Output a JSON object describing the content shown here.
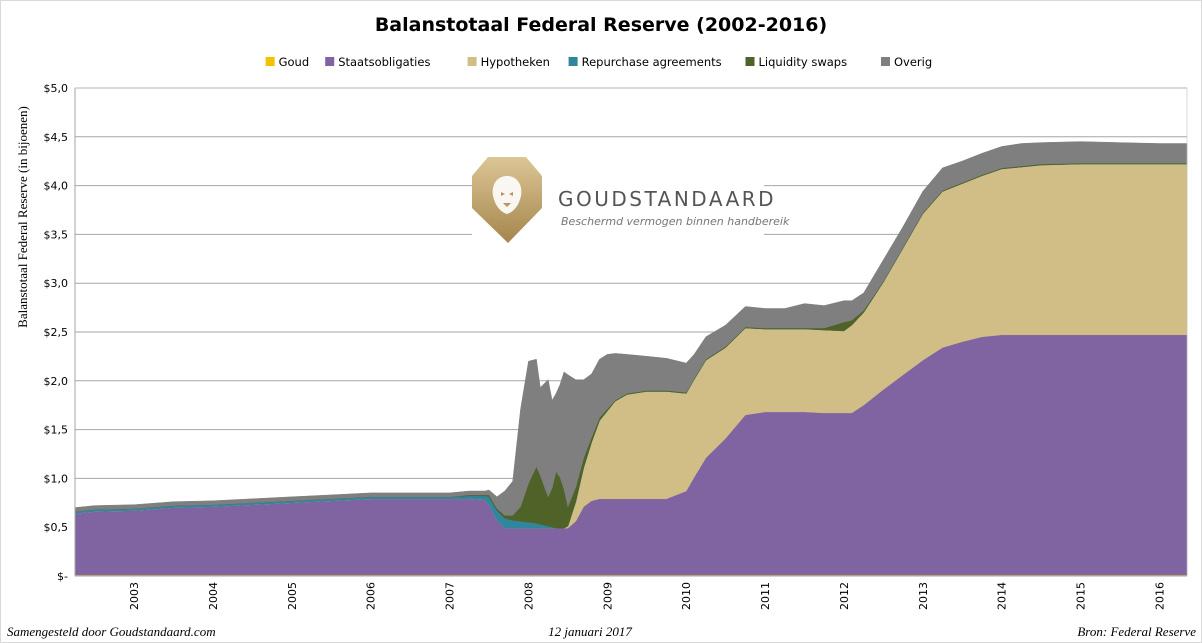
{
  "chart_data": {
    "type": "area",
    "stacked": true,
    "title": "Balanstotaal Federal Reserve (2002-2016)",
    "ylabel": "Balanstotaal Federal Reserve (in bijoenen)",
    "xlabel": "",
    "ylim": [
      0,
      5.0
    ],
    "yticks": [
      "$-",
      "$0,5",
      "$1,0",
      "$1,5",
      "$2,0",
      "$2,5",
      "$3,0",
      "$3,5",
      "$4,0",
      "$4,5",
      "$5,0"
    ],
    "x_tick_labels": [
      "2003",
      "2004",
      "2005",
      "2006",
      "2007",
      "2008",
      "2009",
      "2010",
      "2011",
      "2012",
      "2013",
      "2014",
      "2015",
      "2016"
    ],
    "xlim": [
      2002.75,
      2016.85
    ],
    "grid": true,
    "legend_position": "top",
    "x": [
      2002.75,
      2003.0,
      2003.5,
      2004.0,
      2004.5,
      2005.0,
      2005.5,
      2006.0,
      2006.5,
      2007.0,
      2007.5,
      2007.75,
      2007.95,
      2008.0,
      2008.1,
      2008.2,
      2008.3,
      2008.4,
      2008.5,
      2008.6,
      2008.65,
      2008.7,
      2008.75,
      2008.8,
      2008.85,
      2008.9,
      2008.95,
      2009.0,
      2009.1,
      2009.2,
      2009.3,
      2009.4,
      2009.5,
      2009.6,
      2009.75,
      2010.0,
      2010.25,
      2010.5,
      2010.6,
      2010.75,
      2011.0,
      2011.25,
      2011.5,
      2011.75,
      2012.0,
      2012.25,
      2012.5,
      2012.6,
      2012.75,
      2013.0,
      2013.25,
      2013.5,
      2013.75,
      2014.0,
      2014.25,
      2014.5,
      2014.75,
      2015.0,
      2015.5,
      2016.0,
      2016.5,
      2016.85
    ],
    "series": [
      {
        "name": "Goud",
        "color": "#f2c200",
        "values": [
          0.011,
          0.011,
          0.011,
          0.011,
          0.011,
          0.011,
          0.011,
          0.011,
          0.011,
          0.011,
          0.011,
          0.011,
          0.011,
          0.011,
          0.011,
          0.011,
          0.011,
          0.011,
          0.011,
          0.011,
          0.011,
          0.011,
          0.011,
          0.011,
          0.011,
          0.011,
          0.011,
          0.011,
          0.011,
          0.011,
          0.011,
          0.011,
          0.011,
          0.011,
          0.011,
          0.011,
          0.011,
          0.011,
          0.011,
          0.011,
          0.011,
          0.011,
          0.011,
          0.011,
          0.011,
          0.011,
          0.011,
          0.011,
          0.011,
          0.011,
          0.011,
          0.011,
          0.011,
          0.011,
          0.011,
          0.011,
          0.011,
          0.011,
          0.011,
          0.011,
          0.011,
          0.011
        ]
      },
      {
        "name": "Staatsobligaties",
        "color": "#8064a2",
        "values": [
          0.63,
          0.65,
          0.66,
          0.69,
          0.7,
          0.72,
          0.74,
          0.76,
          0.78,
          0.78,
          0.78,
          0.78,
          0.77,
          0.72,
          0.56,
          0.48,
          0.48,
          0.48,
          0.48,
          0.48,
          0.48,
          0.48,
          0.48,
          0.48,
          0.48,
          0.48,
          0.48,
          0.48,
          0.55,
          0.7,
          0.76,
          0.78,
          0.78,
          0.78,
          0.78,
          0.78,
          0.78,
          0.86,
          1.0,
          1.2,
          1.4,
          1.64,
          1.67,
          1.67,
          1.67,
          1.66,
          1.66,
          1.66,
          1.74,
          1.9,
          2.05,
          2.2,
          2.33,
          2.39,
          2.44,
          2.46,
          2.46,
          2.46,
          2.46,
          2.46,
          2.46,
          2.46
        ]
      },
      {
        "name": "Hypotheken",
        "color": "#d1bd86",
        "values": [
          0,
          0,
          0,
          0,
          0,
          0,
          0,
          0,
          0,
          0,
          0,
          0,
          0,
          0,
          0,
          0,
          0,
          0,
          0,
          0,
          0,
          0,
          0,
          0,
          0,
          0,
          0,
          0.02,
          0.2,
          0.4,
          0.6,
          0.8,
          0.9,
          1.0,
          1.07,
          1.1,
          1.1,
          1.0,
          1.0,
          1.0,
          0.93,
          0.89,
          0.85,
          0.85,
          0.85,
          0.85,
          0.84,
          0.9,
          0.95,
          1.1,
          1.3,
          1.5,
          1.6,
          1.62,
          1.65,
          1.7,
          1.72,
          1.74,
          1.75,
          1.75,
          1.75,
          1.75
        ]
      },
      {
        "name": "Repurchase agreements",
        "color": "#31859c",
        "values": [
          0.02,
          0.02,
          0.02,
          0.02,
          0.02,
          0.02,
          0.02,
          0.02,
          0.02,
          0.02,
          0.02,
          0.03,
          0.04,
          0.08,
          0.1,
          0.1,
          0.08,
          0.07,
          0.06,
          0.05,
          0.04,
          0.03,
          0.02,
          0.01,
          0,
          0,
          0,
          0,
          0,
          0,
          0,
          0,
          0,
          0,
          0,
          0,
          0,
          0,
          0,
          0,
          0,
          0,
          0,
          0,
          0,
          0,
          0,
          0,
          0,
          0,
          0,
          0,
          0,
          0,
          0,
          0,
          0,
          0,
          0,
          0,
          0,
          0
        ]
      },
      {
        "name": "Liquidity swaps",
        "color": "#4f6228",
        "values": [
          0,
          0,
          0,
          0,
          0,
          0,
          0,
          0,
          0,
          0,
          0,
          0.01,
          0.01,
          0.02,
          0.02,
          0.03,
          0.05,
          0.15,
          0.4,
          0.58,
          0.5,
          0.4,
          0.3,
          0.4,
          0.58,
          0.52,
          0.4,
          0.2,
          0.15,
          0.1,
          0.05,
          0.03,
          0.02,
          0.01,
          0.01,
          0.01,
          0.01,
          0.01,
          0.01,
          0.01,
          0.01,
          0.01,
          0.01,
          0.01,
          0.01,
          0.02,
          0.09,
          0.05,
          0.02,
          0.01,
          0.01,
          0.01,
          0.01,
          0.01,
          0.01,
          0.01,
          0.01,
          0.01,
          0.01,
          0.01,
          0.01,
          0.01
        ]
      },
      {
        "name": "Overig",
        "color": "#7f7f7f",
        "values": [
          0.04,
          0.04,
          0.04,
          0.04,
          0.04,
          0.04,
          0.04,
          0.04,
          0.04,
          0.04,
          0.04,
          0.04,
          0.04,
          0.05,
          0.12,
          0.25,
          0.35,
          1.0,
          1.25,
          1.1,
          0.9,
          1.05,
          1.2,
          0.9,
          0.8,
          0.95,
          1.2,
          1.35,
          1.1,
          0.8,
          0.65,
          0.6,
          0.56,
          0.48,
          0.4,
          0.35,
          0.33,
          0.3,
          0.25,
          0.23,
          0.22,
          0.21,
          0.2,
          0.2,
          0.25,
          0.23,
          0.22,
          0.2,
          0.18,
          0.22,
          0.21,
          0.22,
          0.23,
          0.22,
          0.22,
          0.22,
          0.23,
          0.22,
          0.22,
          0.21,
          0.2,
          0.2
        ]
      }
    ]
  },
  "watermark": {
    "brand": "GOUDSTANDAARD",
    "tagline": "Beschermd vermogen binnen handbereik"
  },
  "footer": {
    "left": "Samengesteld door Goudstandaard.com",
    "center": "12 januari 2017",
    "right": "Bron: Federal Reserve"
  },
  "colors": {
    "gridline": "#a6a6a6",
    "axis": "#7f7f7f",
    "plot_background": "#ffffff",
    "logo_gold_light": "#d8bf8a",
    "logo_gold_dark": "#a8874e"
  }
}
